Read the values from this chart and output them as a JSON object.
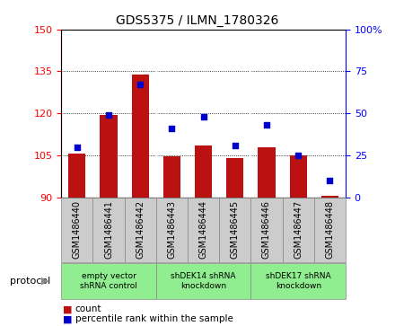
{
  "title": "GDS5375 / ILMN_1780326",
  "samples": [
    "GSM1486440",
    "GSM1486441",
    "GSM1486442",
    "GSM1486443",
    "GSM1486444",
    "GSM1486445",
    "GSM1486446",
    "GSM1486447",
    "GSM1486448"
  ],
  "counts": [
    105.5,
    119.5,
    134.0,
    104.5,
    108.5,
    104.0,
    108.0,
    105.0,
    90.5
  ],
  "percentiles": [
    30,
    49,
    67,
    41,
    48,
    31,
    43,
    25,
    10
  ],
  "ylim_left": [
    90,
    150
  ],
  "ylim_right": [
    0,
    100
  ],
  "yticks_left": [
    90,
    105,
    120,
    135,
    150
  ],
  "yticks_right": [
    0,
    25,
    50,
    75,
    100
  ],
  "group_labels": [
    "empty vector\nshRNA control",
    "shDEK14 shRNA\nknockdown",
    "shDEK17 shRNA\nknockdown"
  ],
  "group_colors": [
    "#90ee90",
    "#90ee90",
    "#90ee90"
  ],
  "bar_color": "#bb1111",
  "dot_color": "#0000cc",
  "bar_bottom": 90,
  "bar_width": 0.55,
  "bg_color": "#cccccc",
  "protocol_label": "protocol",
  "legend_count_label": "count",
  "legend_pct_label": "percentile rank within the sample"
}
